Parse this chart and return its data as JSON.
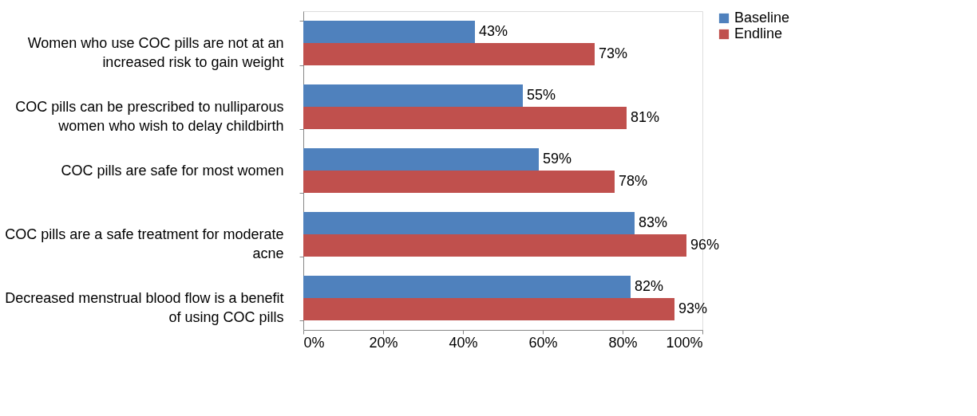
{
  "chart_data": {
    "type": "bar",
    "orientation": "horizontal",
    "categories": [
      "Women who use COC pills are not at an increased risk to gain weight",
      "COC pills can be prescribed to nulliparous women who wish to delay childbirth",
      "COC pills are safe for most women",
      "COC pills are a safe treatment for moderate acne",
      "Decreased menstrual blood flow is a benefit of using COC pills"
    ],
    "series": [
      {
        "name": "Baseline",
        "color": "#4f81bd",
        "values": [
          43,
          55,
          59,
          83,
          82
        ],
        "value_labels": [
          "43%",
          "55%",
          "59%",
          "83%",
          "82%"
        ]
      },
      {
        "name": "Endline",
        "color": "#c0504d",
        "values": [
          73,
          81,
          78,
          96,
          93
        ],
        "value_labels": [
          "73%",
          "81%",
          "78%",
          "96%",
          "93%"
        ]
      }
    ],
    "xlim": [
      0,
      100
    ],
    "xticks": [
      {
        "value": 0,
        "label": "0%"
      },
      {
        "value": 20,
        "label": "20%"
      },
      {
        "value": 40,
        "label": "40%"
      },
      {
        "value": 60,
        "label": "60%"
      },
      {
        "value": 80,
        "label": "80%"
      },
      {
        "value": 100,
        "label": "100%"
      }
    ],
    "legend": "right",
    "grid": false
  }
}
